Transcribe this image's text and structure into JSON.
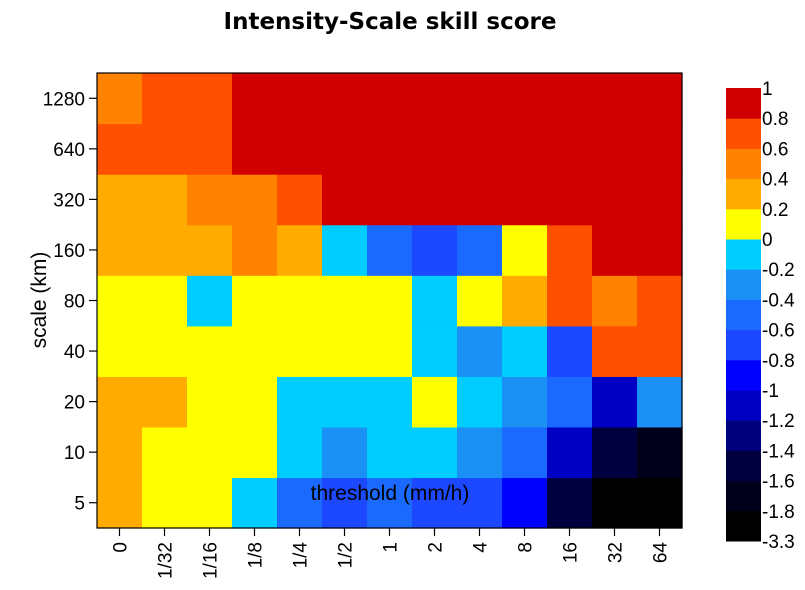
{
  "chart_data": {
    "type": "heatmap",
    "title": "Intensity-Scale skill score",
    "xlabel": "threshold (mm/h)",
    "ylabel": "scale (km)",
    "x_categories": [
      "0",
      "1/32",
      "1/16",
      "1/8",
      "1/4",
      "1/2",
      "1",
      "2",
      "4",
      "8",
      "16",
      "32",
      "64"
    ],
    "y_categories": [
      "5",
      "10",
      "20",
      "40",
      "80",
      "160",
      "320",
      "640",
      "1280"
    ],
    "values": [
      [
        0.3,
        0.1,
        0.1,
        -0.1,
        -0.4,
        -0.6,
        -0.4,
        -0.6,
        -0.6,
        -0.9,
        -1.5,
        -3.3,
        -3.3
      ],
      [
        0.3,
        0.1,
        0.1,
        0.1,
        -0.1,
        -0.3,
        -0.1,
        -0.1,
        -0.3,
        -0.5,
        -1.1,
        -1.5,
        -1.7
      ],
      [
        0.3,
        0.3,
        0.1,
        0.1,
        -0.1,
        -0.1,
        -0.1,
        0.1,
        -0.1,
        -0.3,
        -0.5,
        -1.1,
        -0.3
      ],
      [
        0.1,
        0.1,
        0.1,
        0.1,
        0.1,
        0.1,
        0.1,
        -0.1,
        -0.3,
        -0.1,
        -0.7,
        0.7,
        0.7
      ],
      [
        0.1,
        0.1,
        -0.1,
        0.1,
        0.1,
        0.1,
        0.1,
        -0.1,
        0.1,
        0.3,
        0.7,
        0.5,
        0.7
      ],
      [
        0.3,
        0.3,
        0.3,
        0.5,
        0.3,
        -0.1,
        -0.5,
        -0.7,
        -0.5,
        0.1,
        0.7,
        0.9,
        0.9
      ],
      [
        0.3,
        0.3,
        0.5,
        0.5,
        0.7,
        0.9,
        0.9,
        0.9,
        0.9,
        0.9,
        0.9,
        0.9,
        0.9
      ],
      [
        0.7,
        0.7,
        0.7,
        0.9,
        0.9,
        0.9,
        0.9,
        0.9,
        0.9,
        0.9,
        0.9,
        0.9,
        0.9
      ],
      [
        0.5,
        0.7,
        0.7,
        0.9,
        0.9,
        0.9,
        0.9,
        0.9,
        0.9,
        0.9,
        0.9,
        0.9,
        0.9
      ]
    ],
    "legend": {
      "labels": [
        "-3.3",
        "-1.8",
        "-1.6",
        "-1.4",
        "-1.2",
        "-1",
        "-0.8",
        "-0.6",
        "-0.4",
        "-0.2",
        "0",
        "0.2",
        "0.4",
        "0.6",
        "0.8",
        "1"
      ],
      "breaks": [
        -3.3,
        -1.8,
        -1.6,
        -1.4,
        -1.2,
        -1,
        -0.8,
        -0.6,
        -0.4,
        -0.2,
        0,
        0.2,
        0.4,
        0.6,
        0.8,
        1
      ],
      "colors": [
        "#000000",
        "#00001a",
        "#00003e",
        "#00007a",
        "#0000c4",
        "#0000ff",
        "#1c48ff",
        "#1a6aff",
        "#1a90f5",
        "#00cdff",
        "#ffff00",
        "#ffab00",
        "#ff8200",
        "#ff5000",
        "#d00000"
      ],
      "placement": "right"
    }
  }
}
